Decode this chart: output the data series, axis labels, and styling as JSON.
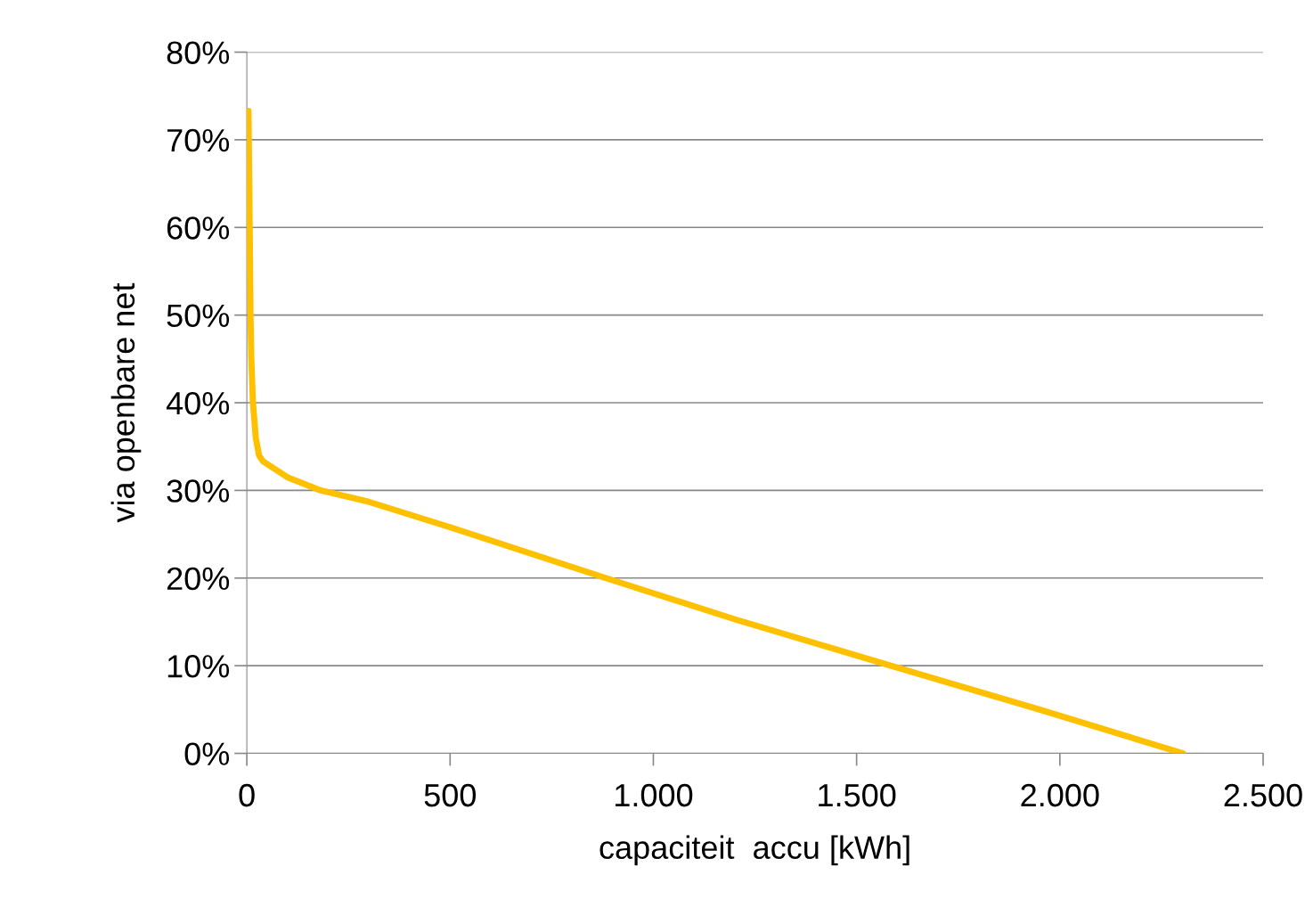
{
  "chart_data": {
    "type": "line",
    "xlabel": "capaciteit  accu [kWh]",
    "ylabel": "via openbare net",
    "series": [
      {
        "color": "#ffc000",
        "x": [
          4,
          6,
          7,
          9,
          11,
          15,
          22,
          30,
          40,
          100,
          182,
          300,
          500,
          883,
          1200,
          1584,
          1950,
          2303
        ],
        "values": [
          73.3,
          65,
          60,
          50,
          45,
          40,
          36,
          34,
          33.3,
          31.5,
          30,
          28.7,
          25.8,
          20,
          15.3,
          10,
          5,
          0
        ]
      }
    ],
    "xlim": [
      0,
      2500
    ],
    "xticks": [
      0,
      {
        "value": 500,
        "label": "500"
      },
      {
        "value": 1000,
        "label": "1.000"
      },
      {
        "value": 1500,
        "label": "1.500"
      },
      {
        "value": 2000,
        "label": "2.000"
      },
      {
        "value": 2500,
        "label": "2.500"
      }
    ],
    "ylim": [
      0,
      80
    ],
    "yticks": [
      {
        "value": 0,
        "label": "0%"
      },
      {
        "value": 10,
        "label": "10%"
      },
      {
        "value": 20,
        "label": "20%"
      },
      {
        "value": 30,
        "label": "30%"
      },
      {
        "value": 40,
        "label": "40%"
      },
      {
        "value": 50,
        "label": "50%"
      },
      {
        "value": 60,
        "label": "60%"
      },
      {
        "value": 70,
        "label": "70%"
      },
      {
        "value": 80,
        "label": "80%"
      }
    ],
    "grid": "y",
    "marker": "none",
    "line_style": "solid"
  }
}
